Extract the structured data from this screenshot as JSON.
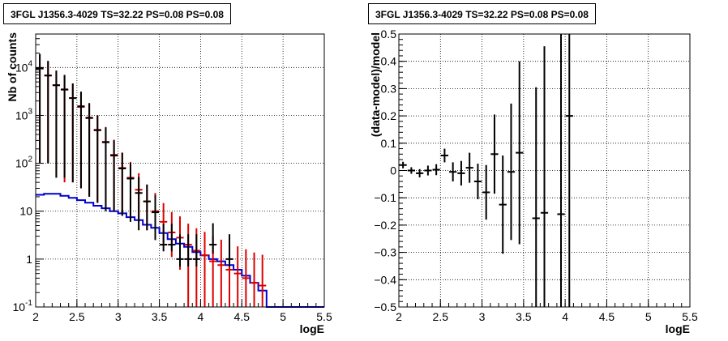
{
  "chart_data": [
    {
      "type": "histogram",
      "title": "3FGL J1356.3-4029 TS=32.22 PS=0.08 PS=0.08",
      "xlabel": "logE",
      "ylabel": "Nb of counts",
      "xlim": [
        2,
        5.5
      ],
      "ylim": [
        0.1,
        50000
      ],
      "yscale": "log",
      "grid": true,
      "x_ticks": [
        "2",
        "2.5",
        "3",
        "3.5",
        "4",
        "4.5",
        "5",
        "5.5"
      ],
      "y_ticks": [
        {
          "value": 0.1,
          "label": "10",
          "exp": "-1"
        },
        {
          "value": 1,
          "label": "1",
          "exp": ""
        },
        {
          "value": 10,
          "label": "10",
          "exp": ""
        },
        {
          "value": 100,
          "label": "10",
          "exp": "2"
        },
        {
          "value": 1000,
          "label": "10",
          "exp": "3"
        },
        {
          "value": 10000,
          "label": "10",
          "exp": "4"
        }
      ],
      "series": [
        {
          "color": "#0000cc",
          "kind": "step",
          "bin_width": 0.1,
          "x": [
            2.0,
            2.1,
            2.2,
            2.3,
            2.4,
            2.5,
            2.6,
            2.7,
            2.8,
            2.9,
            3.0,
            3.1,
            3.2,
            3.3,
            3.4,
            3.5,
            3.6,
            3.7,
            3.8,
            3.9,
            4.0,
            4.1,
            4.2,
            4.3,
            4.4,
            4.5,
            4.6,
            4.7,
            4.8,
            4.9,
            5.0,
            5.1,
            5.2,
            5.3,
            5.4
          ],
          "values": [
            22,
            23,
            23,
            21,
            19,
            17,
            15,
            13,
            11.5,
            10,
            9,
            7.5,
            6.5,
            5.2,
            4.5,
            3.5,
            2.6,
            2.1,
            1.8,
            1.4,
            1.2,
            1.0,
            0.9,
            0.75,
            0.6,
            0.45,
            0.32,
            0.22,
            0.1,
            0.1,
            0.1,
            0.1,
            0.1,
            0.1,
            0.1
          ]
        },
        {
          "color": "#dd0000",
          "kind": "errorbar",
          "x": [
            2.05,
            2.15,
            2.25,
            2.35,
            2.45,
            2.55,
            2.65,
            2.75,
            2.85,
            2.95,
            3.05,
            3.15,
            3.25,
            3.35,
            3.45,
            3.55,
            3.65,
            3.75,
            3.85,
            3.95,
            4.05,
            4.15,
            4.25,
            4.35,
            4.45,
            4.55,
            4.65,
            4.75
          ],
          "values": [
            9500,
            6800,
            4300,
            3500,
            2300,
            1500,
            900,
            500,
            280,
            150,
            80,
            50,
            28,
            16,
            10,
            6,
            3.6,
            2.8,
            2.0,
            1.5,
            1.2,
            0.9,
            0.75,
            0.6,
            0.5,
            0.4,
            0.32,
            0.28
          ],
          "err_low": [
            9400,
            6700,
            4250,
            3460,
            2260,
            1470,
            880,
            485,
            268,
            140,
            72,
            43,
            22,
            12,
            7,
            3.8,
            2.5,
            2.2,
            1.9,
            1.4,
            1.1,
            0.8,
            0.65,
            0.5,
            0.4,
            0.3,
            0.22,
            0.18
          ],
          "err_high": [
            9600,
            6900,
            4350,
            3540,
            2340,
            1530,
            920,
            515,
            292,
            160,
            88,
            57,
            34,
            20,
            14,
            8.8,
            6.0,
            5.0,
            3.5,
            2.9,
            2.5,
            2.1,
            1.8,
            1.5,
            1.35,
            1.2,
            1.05,
            0.95
          ]
        },
        {
          "color": "#000000",
          "kind": "errorbar",
          "x": [
            2.05,
            2.15,
            2.25,
            2.35,
            2.45,
            2.55,
            2.65,
            2.75,
            2.85,
            2.95,
            3.05,
            3.15,
            3.25,
            3.35,
            3.45,
            3.55,
            3.65,
            3.75,
            3.85,
            3.95,
            4.15,
            4.35
          ],
          "values": [
            9600,
            6800,
            4250,
            3450,
            2300,
            1550,
            880,
            490,
            275,
            145,
            78,
            48,
            24,
            16,
            9.5,
            2,
            2,
            1.0,
            1.0,
            1,
            2,
            1
          ],
          "err_low": [
            9500,
            6700,
            4200,
            3400,
            2260,
            1520,
            860,
            475,
            265,
            135,
            70,
            42,
            20,
            12,
            7,
            0.55,
            0.55,
            0.3,
            0.3,
            0.3,
            0.7,
            0.3
          ],
          "err_high": [
            9700,
            6900,
            4300,
            3500,
            2340,
            1580,
            900,
            505,
            285,
            155,
            86,
            54,
            28,
            20,
            12,
            3.5,
            3.5,
            2.3,
            2.3,
            2.3,
            3.6,
            2.3
          ]
        }
      ]
    },
    {
      "type": "errorbar",
      "title": "3FGL J1356.3-4029 TS=32.22 PS=0.08 PS=0.08",
      "xlabel": "logE",
      "ylabel": "(data-model)/model",
      "xlim": [
        2,
        5.5
      ],
      "ylim": [
        -0.5,
        0.5
      ],
      "grid": true,
      "x_ticks": [
        "2",
        "2.5",
        "3",
        "3.5",
        "4",
        "4.5",
        "5",
        "5.5"
      ],
      "y_ticks": [
        "-0.5",
        "-0.4",
        "-0.3",
        "-0.2",
        "-0.1",
        "0",
        "0.1",
        "0.2",
        "0.3",
        "0.4",
        "0.5"
      ],
      "series": [
        {
          "color": "#000000",
          "x": [
            2.05,
            2.15,
            2.25,
            2.35,
            2.45,
            2.55,
            2.65,
            2.75,
            2.85,
            2.95,
            3.05,
            3.15,
            3.25,
            3.35,
            3.45,
            3.65,
            3.75,
            3.95,
            4.05
          ],
          "values": [
            0.02,
            0.0,
            -0.01,
            0.0,
            0.003,
            0.055,
            -0.005,
            -0.01,
            0.01,
            -0.04,
            -0.08,
            0.06,
            -0.125,
            -0.005,
            0.065,
            -0.175,
            -0.155,
            -0.16,
            0.2
          ],
          "err": [
            0.012,
            0.012,
            0.015,
            0.018,
            0.02,
            0.025,
            0.035,
            0.045,
            0.055,
            0.065,
            0.1,
            0.145,
            0.18,
            0.25,
            0.335,
            0.48,
            0.61,
            0.7,
            0.7
          ]
        }
      ]
    }
  ]
}
